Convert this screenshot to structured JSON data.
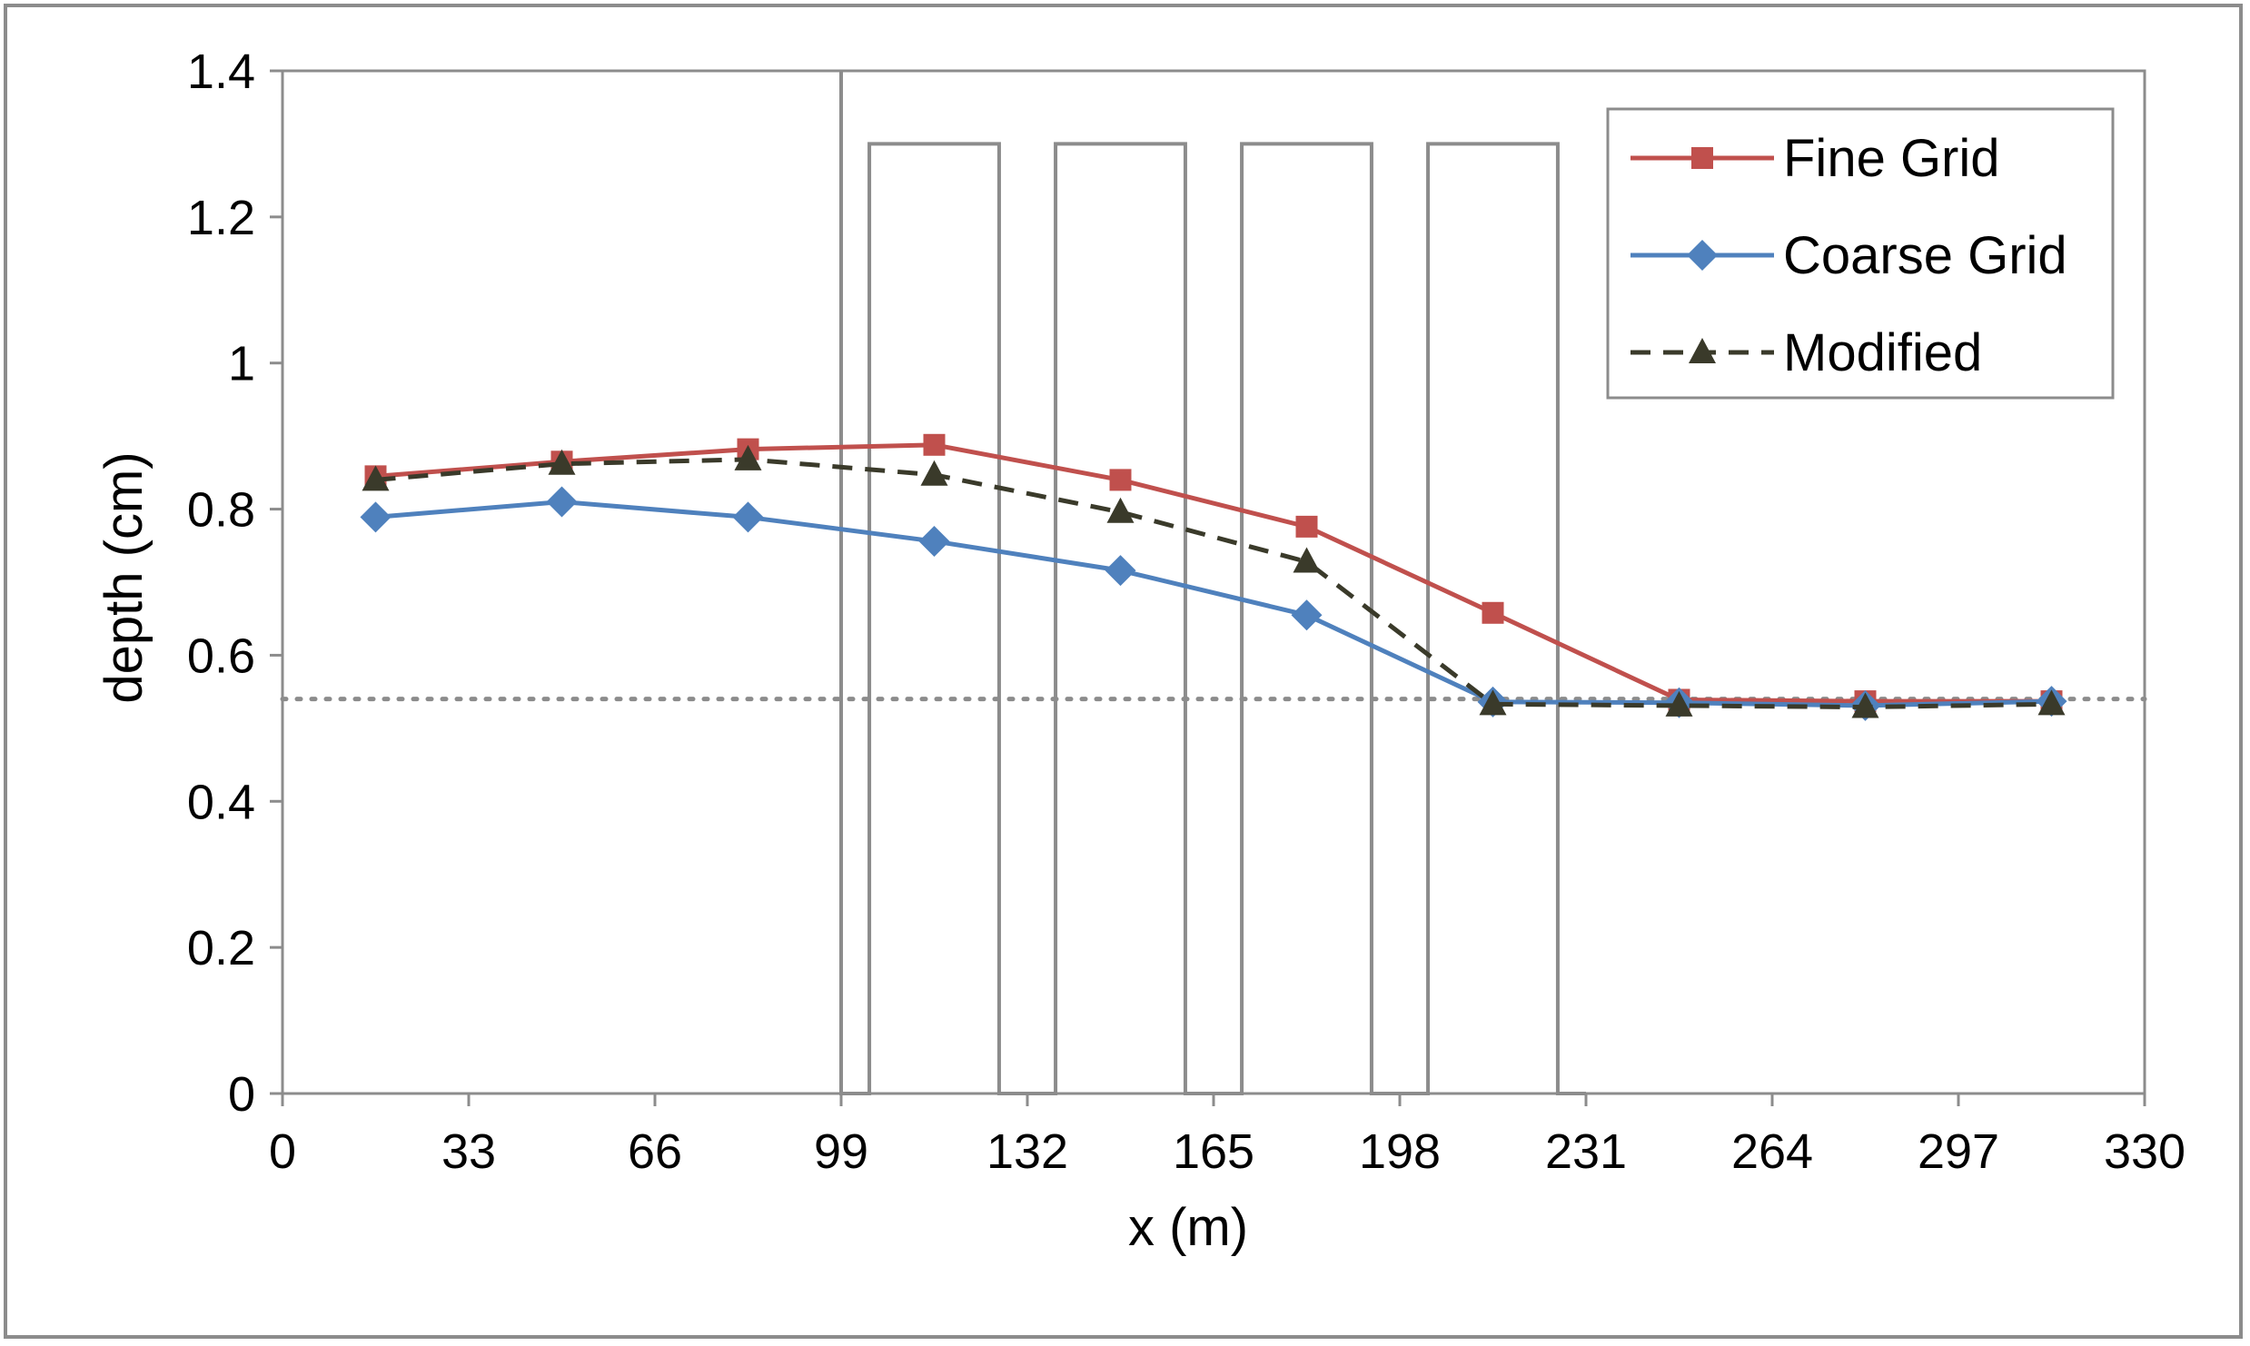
{
  "chart_data": {
    "type": "line",
    "title": "",
    "xlabel": "x (m)",
    "ylabel": "depth (cm)",
    "xlim": [
      0,
      330
    ],
    "ylim": [
      0,
      1.4
    ],
    "xticks": [
      "0",
      "33",
      "66",
      "99",
      "132",
      "165",
      "198",
      "231",
      "264",
      "297",
      "330"
    ],
    "yticks": [
      "0",
      "0.2",
      "0.4",
      "0.6",
      "0.8",
      "1",
      "1.2",
      "1.4"
    ],
    "grid": false,
    "legend_position": "top-right",
    "reference_line": {
      "y": 0.54,
      "style": "dotted",
      "color": "#8c8c8c"
    },
    "bar_profile": {
      "color": "#8c8c8c",
      "points": [
        [
          99,
          0
        ],
        [
          99,
          1.4
        ],
        [
          99,
          0
        ],
        [
          104,
          0
        ],
        [
          104,
          1.3
        ],
        [
          127,
          1.3
        ],
        [
          127,
          0
        ],
        [
          137,
          0
        ],
        [
          137,
          1.3
        ],
        [
          160,
          1.3
        ],
        [
          160,
          0
        ],
        [
          170,
          0
        ],
        [
          170,
          1.3
        ],
        [
          193,
          1.3
        ],
        [
          193,
          0
        ],
        [
          203,
          0
        ],
        [
          203,
          1.3
        ],
        [
          226,
          1.3
        ],
        [
          226,
          0
        ],
        [
          231,
          0
        ]
      ]
    },
    "series": [
      {
        "name": "Fine Grid",
        "color": "#c0504d",
        "marker": "square",
        "dash": "solid",
        "x": [
          16.5,
          49.5,
          82.5,
          115.5,
          148.5,
          181.5,
          214.5,
          247.5,
          280.5,
          313.5
        ],
        "y": [
          0.845,
          0.865,
          0.882,
          0.888,
          0.84,
          0.776,
          0.658,
          0.539,
          0.537,
          0.537
        ]
      },
      {
        "name": "Coarse Grid",
        "color": "#4f81bd",
        "marker": "diamond",
        "dash": "solid",
        "x": [
          16.5,
          49.5,
          82.5,
          115.5,
          148.5,
          181.5,
          214.5,
          247.5,
          280.5,
          313.5
        ],
        "y": [
          0.789,
          0.81,
          0.789,
          0.756,
          0.716,
          0.655,
          0.536,
          0.535,
          0.531,
          0.537
        ]
      },
      {
        "name": "Modified",
        "color": "#3a3a2a",
        "marker": "triangle",
        "dash": "dashed",
        "x": [
          16.5,
          49.5,
          82.5,
          115.5,
          148.5,
          181.5,
          214.5,
          247.5,
          280.5,
          313.5
        ],
        "y": [
          0.84,
          0.862,
          0.868,
          0.847,
          0.796,
          0.728,
          0.533,
          0.531,
          0.529,
          0.533
        ]
      }
    ]
  }
}
